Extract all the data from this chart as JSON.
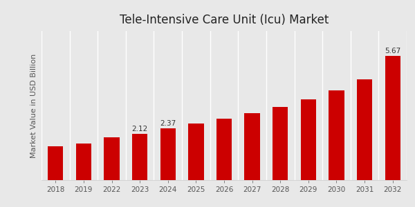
{
  "title": "Tele-Intensive Care Unit (Icu) Market",
  "ylabel": "Market Value in USD Billion",
  "categories": [
    "2018",
    "2019",
    "2022",
    "2023",
    "2024",
    "2025",
    "2026",
    "2027",
    "2028",
    "2029",
    "2030",
    "2031",
    "2032"
  ],
  "values": [
    1.55,
    1.68,
    1.95,
    2.12,
    2.37,
    2.58,
    2.8,
    3.05,
    3.35,
    3.7,
    4.1,
    4.6,
    5.67
  ],
  "bar_color": "#cc0000",
  "background_color": "#e8e8e8",
  "labeled_bars": {
    "2023": "2.12",
    "2024": "2.37",
    "2032": "5.67"
  },
  "title_fontsize": 12,
  "ylabel_fontsize": 8,
  "tick_fontsize": 7.5,
  "label_fontsize": 7.5,
  "bottom_bar_color": "#bb0000",
  "grid_color": "#ffffff"
}
